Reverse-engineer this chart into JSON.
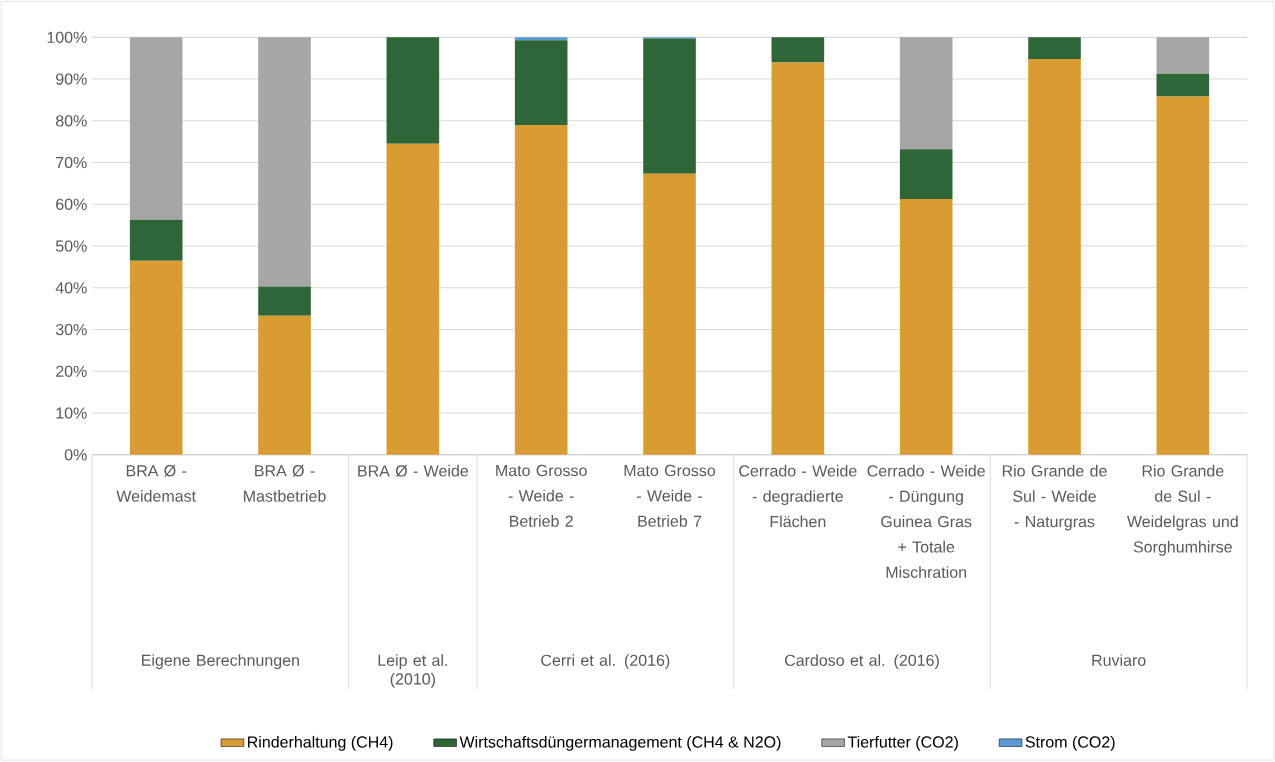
{
  "chart_data": {
    "type": "bar",
    "stacked": true,
    "categories": [
      "BRA Ø - Weidemast",
      "BRA Ø - Mastbetrieb",
      "BRA Ø - Weide",
      "Mato Grosso - Weide - Betrieb 2",
      "Mato Grosso - Weide - Betrieb 7",
      "Cerrado - Weide - degradierte Flächen",
      "Cerrado - Weide - Düngung Guinea Gras + Totale Mischration",
      "Rio Grande de Sul - Weide - Naturgras",
      "Rio Grande de Sul - Weidelgras und Sorghumhirse"
    ],
    "series": [
      {
        "name": "Rinderhaltung (CH4)",
        "color": "#d89c33",
        "values": [
          46.5,
          33.3,
          74.5,
          79,
          67.3,
          94,
          61.3,
          94.8,
          85.8
        ]
      },
      {
        "name": "Wirtschaftsdüngermanagement (CH4 & N2O)",
        "color": "#2e6637",
        "values": [
          9.8,
          7,
          25.5,
          20.3,
          32.4,
          6,
          11.9,
          5.2,
          5.5
        ]
      },
      {
        "name": "Tierfutter (CO2)",
        "color": "#a6a6a6",
        "values": [
          43.7,
          59.7,
          0,
          0,
          0,
          0,
          26.8,
          0,
          8.7
        ]
      },
      {
        "name": "Strom (CO2)",
        "color": "#5b9bd5",
        "values": [
          0,
          0,
          0,
          0.7,
          0.3,
          0,
          0,
          0,
          0
        ]
      }
    ],
    "ylim": [
      0,
      100
    ],
    "yticks": [
      {
        "value": 0,
        "label": "0%"
      },
      {
        "value": 10,
        "label": "10%"
      },
      {
        "value": 20,
        "label": "20%"
      },
      {
        "value": 30,
        "label": "30%"
      },
      {
        "value": 40,
        "label": "40%"
      },
      {
        "value": 50,
        "label": "50%"
      },
      {
        "value": 60,
        "label": "60%"
      },
      {
        "value": 70,
        "label": "70%"
      },
      {
        "value": 80,
        "label": "80%"
      },
      {
        "value": 90,
        "label": "90%"
      },
      {
        "value": 100,
        "label": "100%"
      }
    ],
    "annotations": [
      "Eigene Berechnungen",
      "Leip et al. (2010)",
      "Cerri et al. (2016)",
      "Cardoso et al. (2016)",
      "Ruviaro"
    ],
    "grid": "y",
    "legend": "bottom"
  }
}
